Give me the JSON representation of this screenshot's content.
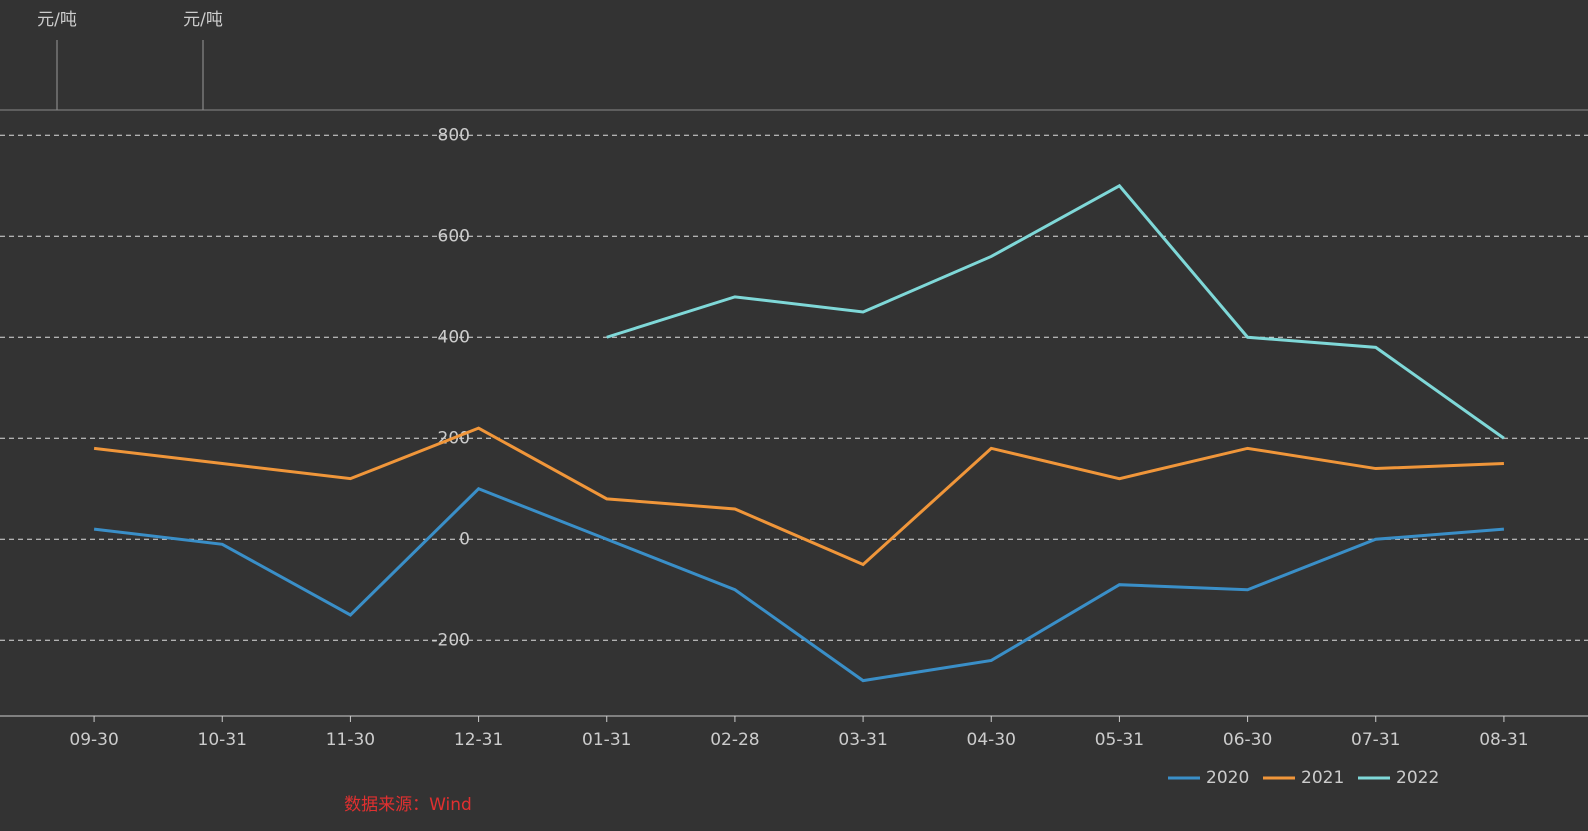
{
  "chart_data": {
    "type": "line",
    "units": [
      "元/吨",
      "元/吨"
    ],
    "categories": [
      "09-30",
      "10-31",
      "11-30",
      "12-31",
      "01-31",
      "02-28",
      "03-31",
      "04-30",
      "05-31",
      "06-30",
      "07-31",
      "08-31"
    ],
    "series": [
      {
        "name": "2020",
        "color": "#3a8fc8",
        "values": [
          20,
          -10,
          -150,
          100,
          0,
          -100,
          -280,
          -240,
          -90,
          -100,
          0,
          20
        ]
      },
      {
        "name": "2021",
        "color": "#f0963a",
        "values": [
          180,
          150,
          120,
          220,
          80,
          60,
          -50,
          180,
          120,
          180,
          140,
          150
        ]
      },
      {
        "name": "2022",
        "color": "#7fd8d8",
        "values": [
          null,
          null,
          null,
          null,
          400,
          480,
          450,
          560,
          700,
          400,
          380,
          200
        ]
      }
    ],
    "ylim": [
      -350,
      850
    ],
    "yticks": [
      -200,
      0,
      200,
      400,
      600,
      800
    ],
    "grid": true,
    "legend": "bottom-right",
    "source": "数据来源：Wind"
  }
}
